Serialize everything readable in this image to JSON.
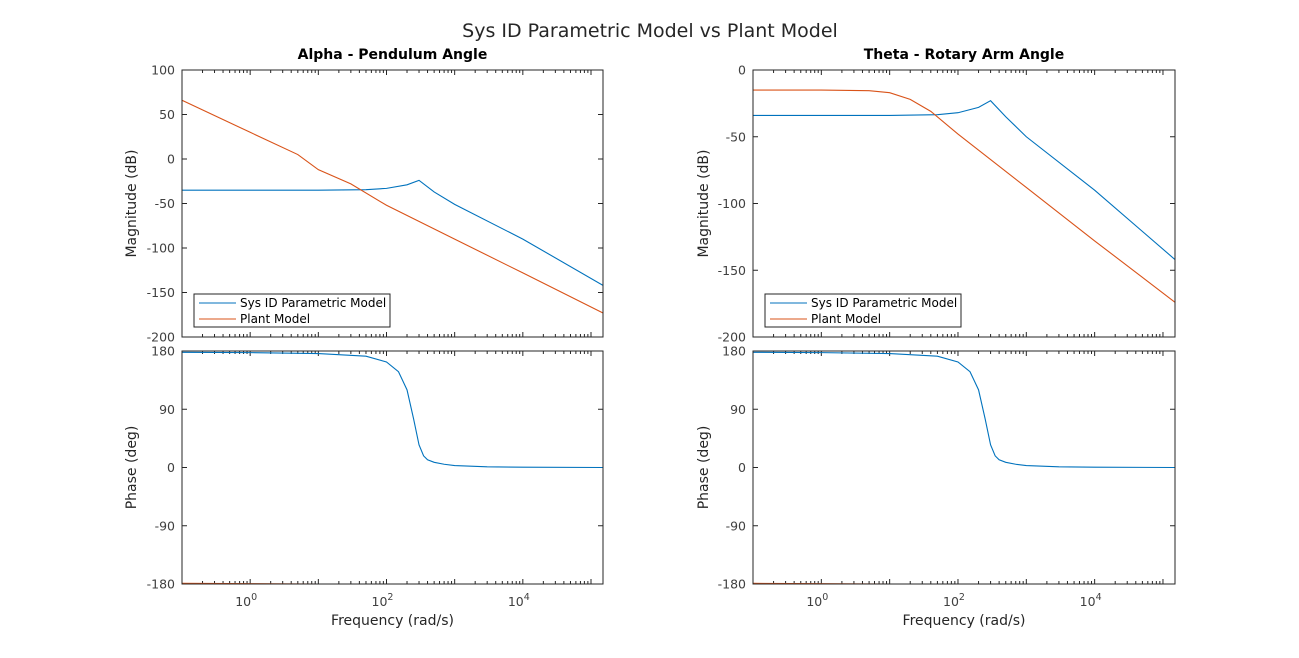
{
  "figure": {
    "title": "Sys ID Parametric Model vs Plant Model"
  },
  "chart_data": [
    {
      "type": "line",
      "title": "Alpha - Pendulum Angle",
      "xlabel": "",
      "ylabel": "Magnitude (dB)",
      "x_scale": "log",
      "xlim": [
        0.1,
        150000
      ],
      "ylim": [
        -200,
        100
      ],
      "yticks": [
        "100",
        "50",
        "0",
        "-50",
        "-100",
        "-150",
        "-200"
      ],
      "legend": {
        "placement": "bottom-left",
        "entries": [
          "Sys ID Parametric Model",
          "Plant Model"
        ]
      },
      "series": [
        {
          "name": "Sys ID Parametric Model",
          "color": "#0072BD",
          "x": [
            0.1,
            1,
            10,
            50,
            100,
            200,
            300,
            500,
            1000,
            10000,
            150000
          ],
          "y": [
            -35,
            -35,
            -35,
            -34.5,
            -33,
            -29,
            -24,
            -37,
            -51,
            -90,
            -142
          ]
        },
        {
          "name": "Plant Model",
          "color": "#D95319",
          "x": [
            0.1,
            1,
            5,
            10,
            30,
            100,
            1000,
            10000,
            150000
          ],
          "y": [
            66,
            30,
            5,
            -12,
            -28,
            -52,
            -90,
            -128,
            -173
          ]
        }
      ]
    },
    {
      "type": "line",
      "title": "Theta - Rotary Arm Angle",
      "xlabel": "",
      "ylabel": "Magnitude (dB)",
      "x_scale": "log",
      "xlim": [
        0.1,
        150000
      ],
      "ylim": [
        -200,
        0
      ],
      "yticks": [
        "0",
        "-50",
        "-100",
        "-150",
        "-200"
      ],
      "legend": {
        "placement": "bottom-left",
        "entries": [
          "Sys ID Parametric Model",
          "Plant Model"
        ]
      },
      "series": [
        {
          "name": "Sys ID Parametric Model",
          "color": "#0072BD",
          "x": [
            0.1,
            1,
            10,
            50,
            100,
            200,
            300,
            500,
            1000,
            10000,
            150000
          ],
          "y": [
            -34,
            -34,
            -34,
            -33.5,
            -32,
            -28,
            -23,
            -35,
            -50,
            -90,
            -142
          ]
        },
        {
          "name": "Plant Model",
          "color": "#D95319",
          "x": [
            0.1,
            1,
            5,
            10,
            20,
            40,
            100,
            1000,
            10000,
            150000
          ],
          "y": [
            -15,
            -15,
            -15.5,
            -17,
            -22,
            -31,
            -48,
            -88,
            -128,
            -174
          ]
        }
      ]
    },
    {
      "type": "line",
      "title": "",
      "xlabel": "Frequency  (rad/s)",
      "ylabel": "Phase (deg)",
      "x_scale": "log",
      "xlim": [
        0.1,
        150000
      ],
      "ylim": [
        -180,
        180
      ],
      "yticks": [
        "180",
        "90",
        "0",
        "-90",
        "-180"
      ],
      "xticks": [
        {
          "base": "10",
          "exp": "0"
        },
        {
          "base": "10",
          "exp": "2"
        },
        {
          "base": "10",
          "exp": "4"
        }
      ],
      "series": [
        {
          "name": "Sys ID Parametric Model",
          "color": "#0072BD",
          "x": [
            0.1,
            1,
            10,
            50,
            100,
            150,
            200,
            250,
            300,
            350,
            400,
            500,
            700,
            1000,
            3000,
            10000,
            150000
          ],
          "y": [
            178,
            177.5,
            176,
            172,
            163,
            148,
            120,
            75,
            35,
            18,
            12,
            8,
            5,
            3,
            1,
            0.5,
            0
          ]
        },
        {
          "name": "Plant Model",
          "color": "#D95319",
          "x": [
            0.1,
            1,
            10,
            100,
            1000,
            10000,
            150000
          ],
          "y": [
            -179,
            -179.5,
            -180,
            -180,
            -180,
            -180,
            -180
          ]
        }
      ]
    },
    {
      "type": "line",
      "title": "",
      "xlabel": "Frequency  (rad/s)",
      "ylabel": "Phase (deg)",
      "x_scale": "log",
      "xlim": [
        0.1,
        150000
      ],
      "ylim": [
        -180,
        180
      ],
      "yticks": [
        "180",
        "90",
        "0",
        "-90",
        "-180"
      ],
      "xticks": [
        {
          "base": "10",
          "exp": "0"
        },
        {
          "base": "10",
          "exp": "2"
        },
        {
          "base": "10",
          "exp": "4"
        }
      ],
      "series": [
        {
          "name": "Sys ID Parametric Model",
          "color": "#0072BD",
          "x": [
            0.1,
            1,
            10,
            50,
            100,
            150,
            200,
            250,
            300,
            350,
            400,
            500,
            700,
            1000,
            3000,
            10000,
            150000
          ],
          "y": [
            178,
            177.5,
            176,
            172,
            163,
            148,
            120,
            75,
            35,
            18,
            12,
            8,
            5,
            3,
            1,
            0.5,
            0
          ]
        },
        {
          "name": "Plant Model",
          "color": "#D95319",
          "x": [
            0.1,
            1,
            10,
            100,
            1000,
            10000,
            150000
          ],
          "y": [
            -179,
            -179.5,
            -180,
            -180,
            -180,
            -180,
            -180
          ]
        }
      ]
    }
  ]
}
